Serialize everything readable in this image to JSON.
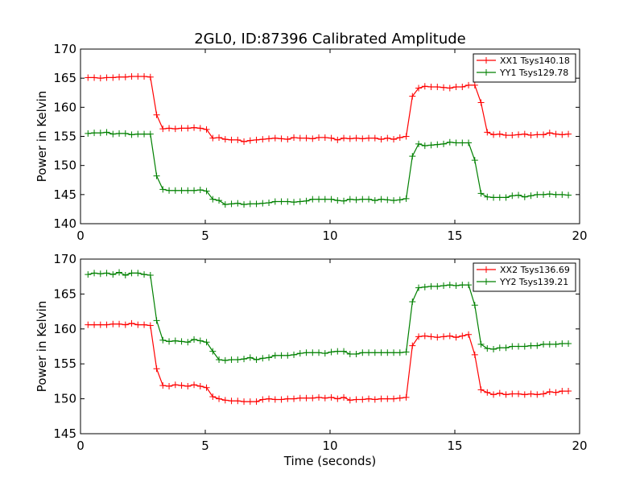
{
  "figure": {
    "title": "2GL0, ID:87396 Calibrated Amplitude"
  },
  "chart_data": [
    {
      "type": "line",
      "title": "2GL0, ID:87396 Calibrated Amplitude",
      "xlabel": "",
      "ylabel": "Power in Kelvin",
      "xlim": [
        0,
        20
      ],
      "ylim": [
        140,
        170
      ],
      "xticks": [
        0,
        5,
        10,
        15,
        20
      ],
      "yticks": [
        140,
        145,
        150,
        155,
        160,
        165,
        170
      ],
      "grid": false,
      "legend_position": "top-right",
      "x": [
        0.3,
        0.55,
        0.8,
        1.05,
        1.3,
        1.55,
        1.8,
        2.05,
        2.3,
        2.55,
        2.8,
        3.05,
        3.3,
        3.55,
        3.8,
        4.05,
        4.3,
        4.55,
        4.8,
        5.05,
        5.3,
        5.55,
        5.8,
        6.05,
        6.3,
        6.55,
        6.8,
        7.05,
        7.3,
        7.55,
        7.8,
        8.05,
        8.3,
        8.55,
        8.8,
        9.05,
        9.3,
        9.55,
        9.8,
        10.05,
        10.3,
        10.55,
        10.8,
        11.05,
        11.3,
        11.55,
        11.8,
        12.05,
        12.3,
        12.55,
        12.8,
        13.05,
        13.3,
        13.55,
        13.8,
        14.05,
        14.3,
        14.55,
        14.8,
        15.05,
        15.3,
        15.55,
        15.8,
        16.05,
        16.3,
        16.55,
        16.8,
        17.05,
        17.3,
        17.55,
        17.8,
        18.05,
        18.3,
        18.55,
        18.8,
        19.05,
        19.3,
        19.55
      ],
      "series": [
        {
          "name": "XX1 Tsys140.18",
          "color": "#ff0000",
          "values": [
            165.1,
            165.1,
            165.0,
            165.1,
            165.1,
            165.2,
            165.2,
            165.3,
            165.3,
            165.3,
            165.2,
            158.7,
            156.3,
            156.4,
            156.3,
            156.4,
            156.4,
            156.5,
            156.4,
            156.2,
            154.7,
            154.8,
            154.5,
            154.4,
            154.4,
            154.1,
            154.3,
            154.4,
            154.5,
            154.6,
            154.7,
            154.6,
            154.5,
            154.8,
            154.7,
            154.7,
            154.6,
            154.8,
            154.8,
            154.7,
            154.4,
            154.7,
            154.6,
            154.7,
            154.6,
            154.7,
            154.7,
            154.5,
            154.7,
            154.5,
            154.8,
            155.0,
            161.9,
            163.3,
            163.6,
            163.5,
            163.5,
            163.4,
            163.3,
            163.5,
            163.5,
            163.8,
            163.8,
            160.8,
            155.7,
            155.3,
            155.4,
            155.2,
            155.2,
            155.3,
            155.4,
            155.2,
            155.3,
            155.3,
            155.6,
            155.4,
            155.3,
            155.4
          ]
        },
        {
          "name": "YY1 Tsys129.78",
          "color": "#008000",
          "values": [
            155.5,
            155.6,
            155.6,
            155.7,
            155.4,
            155.5,
            155.5,
            155.3,
            155.4,
            155.4,
            155.4,
            148.2,
            145.9,
            145.7,
            145.7,
            145.7,
            145.7,
            145.7,
            145.8,
            145.6,
            144.2,
            144.0,
            143.3,
            143.4,
            143.5,
            143.3,
            143.4,
            143.4,
            143.5,
            143.6,
            143.8,
            143.8,
            143.8,
            143.7,
            143.8,
            143.9,
            144.2,
            144.2,
            144.2,
            144.2,
            144.0,
            143.9,
            144.2,
            144.1,
            144.2,
            144.2,
            144.0,
            144.2,
            144.1,
            144.0,
            144.1,
            144.3,
            151.6,
            153.7,
            153.4,
            153.5,
            153.6,
            153.7,
            154.0,
            153.9,
            153.9,
            153.9,
            150.9,
            145.2,
            144.6,
            144.5,
            144.5,
            144.5,
            144.8,
            144.9,
            144.6,
            144.8,
            145.0,
            145.0,
            145.1,
            145.0,
            145.0,
            144.9
          ]
        }
      ]
    },
    {
      "type": "line",
      "title": "",
      "xlabel": "Time (seconds)",
      "ylabel": "Power in Kelvin",
      "xlim": [
        0,
        20
      ],
      "ylim": [
        145,
        170
      ],
      "xticks": [
        0,
        5,
        10,
        15,
        20
      ],
      "yticks": [
        145,
        150,
        155,
        160,
        165,
        170
      ],
      "grid": false,
      "legend_position": "top-right",
      "x": [
        0.3,
        0.55,
        0.8,
        1.05,
        1.3,
        1.55,
        1.8,
        2.05,
        2.3,
        2.55,
        2.8,
        3.05,
        3.3,
        3.55,
        3.8,
        4.05,
        4.3,
        4.55,
        4.8,
        5.05,
        5.3,
        5.55,
        5.8,
        6.05,
        6.3,
        6.55,
        6.8,
        7.05,
        7.3,
        7.55,
        7.8,
        8.05,
        8.3,
        8.55,
        8.8,
        9.05,
        9.3,
        9.55,
        9.8,
        10.05,
        10.3,
        10.55,
        10.8,
        11.05,
        11.3,
        11.55,
        11.8,
        12.05,
        12.3,
        12.55,
        12.8,
        13.05,
        13.3,
        13.55,
        13.8,
        14.05,
        14.3,
        14.55,
        14.8,
        15.05,
        15.3,
        15.55,
        15.8,
        16.05,
        16.3,
        16.55,
        16.8,
        17.05,
        17.3,
        17.55,
        17.8,
        18.05,
        18.3,
        18.55,
        18.8,
        19.05,
        19.3,
        19.55
      ],
      "series": [
        {
          "name": "XX2 Tsys136.69",
          "color": "#ff0000",
          "values": [
            160.6,
            160.6,
            160.6,
            160.6,
            160.7,
            160.7,
            160.6,
            160.8,
            160.6,
            160.6,
            160.5,
            154.3,
            151.9,
            151.8,
            152.0,
            151.9,
            151.8,
            152.0,
            151.8,
            151.6,
            150.3,
            150.0,
            149.8,
            149.7,
            149.7,
            149.6,
            149.6,
            149.6,
            149.9,
            150.0,
            149.9,
            149.9,
            150.0,
            150.0,
            150.1,
            150.1,
            150.1,
            150.2,
            150.1,
            150.2,
            150.0,
            150.2,
            149.8,
            149.9,
            149.9,
            150.0,
            149.9,
            150.0,
            150.0,
            150.0,
            150.1,
            150.2,
            157.6,
            158.9,
            159.0,
            158.9,
            158.8,
            158.9,
            159.0,
            158.8,
            159.0,
            159.2,
            156.3,
            151.3,
            150.9,
            150.6,
            150.8,
            150.6,
            150.7,
            150.7,
            150.6,
            150.7,
            150.6,
            150.7,
            151.0,
            150.9,
            151.1,
            151.1
          ]
        },
        {
          "name": "YY2 Tsys139.21",
          "color": "#008000",
          "values": [
            167.8,
            168.0,
            167.9,
            168.0,
            167.8,
            168.1,
            167.7,
            168.0,
            168.0,
            167.8,
            167.7,
            161.2,
            158.4,
            158.2,
            158.3,
            158.2,
            158.1,
            158.5,
            158.3,
            158.1,
            156.8,
            155.6,
            155.5,
            155.6,
            155.6,
            155.7,
            155.9,
            155.6,
            155.8,
            155.9,
            156.2,
            156.2,
            156.2,
            156.3,
            156.5,
            156.6,
            156.6,
            156.6,
            156.5,
            156.7,
            156.8,
            156.8,
            156.4,
            156.4,
            156.6,
            156.6,
            156.6,
            156.6,
            156.6,
            156.6,
            156.6,
            156.7,
            163.9,
            165.9,
            166.0,
            166.1,
            166.1,
            166.2,
            166.3,
            166.2,
            166.3,
            166.3,
            163.4,
            157.8,
            157.2,
            157.1,
            157.3,
            157.3,
            157.5,
            157.5,
            157.5,
            157.6,
            157.6,
            157.8,
            157.8,
            157.8,
            157.9,
            157.9
          ]
        }
      ]
    }
  ]
}
